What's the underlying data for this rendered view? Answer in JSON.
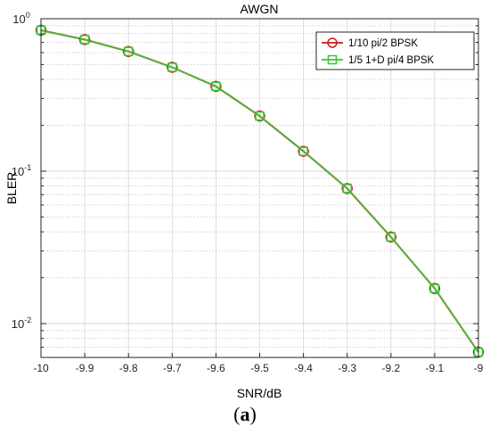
{
  "chart_data": {
    "type": "line",
    "title": "AWGN",
    "xlabel": "SNR/dB",
    "ylabel": "BLER",
    "xlim": [
      -10,
      -9
    ],
    "ylim": [
      0.006,
      1
    ],
    "yscale": "log",
    "grid": true,
    "legend_position": "top-right",
    "x_ticks": [
      "-10",
      "-9.9",
      "-9.8",
      "-9.7",
      "-9.6",
      "-9.5",
      "-9.4",
      "-9.3",
      "-9.2",
      "-9.1",
      "-9"
    ],
    "x": [
      -10,
      -9.9,
      -9.8,
      -9.7,
      -9.6,
      -9.5,
      -9.4,
      -9.3,
      -9.2,
      -9.1,
      -9
    ],
    "series": [
      {
        "name": "1/10 pi/2 BPSK",
        "marker": "circle",
        "color": "#cc1a1a",
        "values": [
          0.84,
          0.73,
          0.61,
          0.48,
          0.36,
          0.23,
          0.135,
          0.077,
          0.037,
          0.017,
          0.0065
        ]
      },
      {
        "name": "1/5 1+D pi/4 BPSK",
        "marker": "square",
        "color": "#33cc33",
        "values": [
          0.84,
          0.73,
          0.61,
          0.48,
          0.36,
          0.23,
          0.135,
          0.077,
          0.037,
          0.017,
          0.0065
        ]
      }
    ]
  },
  "caption": {
    "open": "(",
    "letter": "a",
    "close": ")"
  }
}
